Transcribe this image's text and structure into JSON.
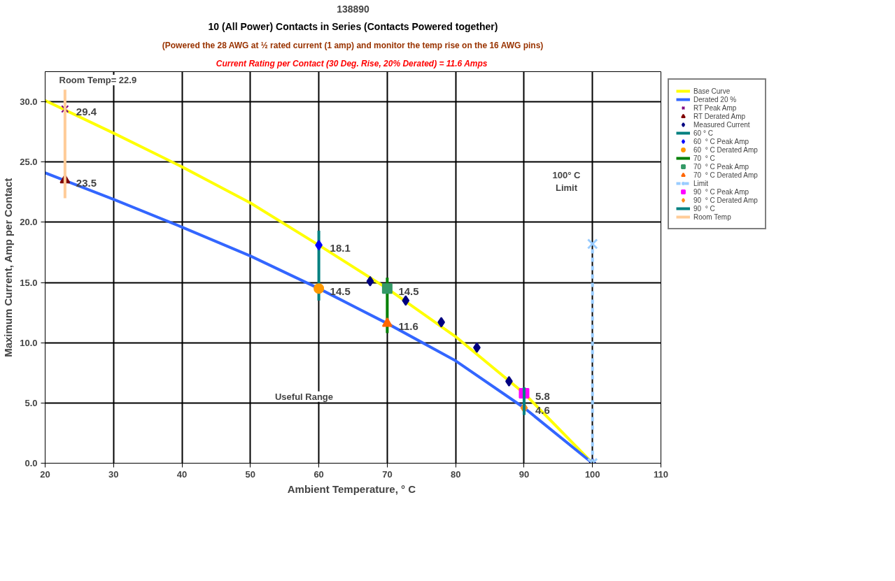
{
  "chart_data": {
    "type": "line",
    "title": "138890",
    "subtitle": [
      "10 (All Power) Contacts in Series (Contacts Powered together)",
      "(Powered the 28 AWG at ½ rated current (1 amp) and monitor the temp rise on the 16 AWG pins)",
      "Current Rating per Contact (30 Deg. Rise, 20% Derated)  = 11.6 Amps"
    ],
    "xlabel": "Ambient Temperature,  ° C",
    "ylabel": "Maximum Current, Amp per Contact",
    "xlim": [
      20,
      110
    ],
    "ylim": [
      0,
      32.5
    ],
    "xticks": [
      20,
      30,
      40,
      50,
      60,
      70,
      80,
      90,
      100,
      110
    ],
    "yticks": [
      {
        "value": 0,
        "label": "0.0"
      },
      {
        "value": 5,
        "label": "5.0"
      },
      {
        "value": 10,
        "label": "10.0"
      },
      {
        "value": 15,
        "label": "15.0"
      },
      {
        "value": 20,
        "label": "20.0"
      },
      {
        "value": 25,
        "label": "25.0"
      },
      {
        "value": 30,
        "label": "30.0"
      }
    ],
    "grid": true,
    "legend": "right",
    "annotations": [
      "Room Temp= 22.9",
      "100° C\nLimit",
      "Useful Range"
    ],
    "series": [
      {
        "name": "Base Curve",
        "color": "#ffff00",
        "marker": "none",
        "x": [
          20,
          30,
          40,
          50,
          60,
          70,
          80,
          90,
          100
        ],
        "values": [
          30.1,
          27.4,
          24.6,
          21.6,
          18.1,
          14.5,
          10.5,
          5.8,
          0
        ]
      },
      {
        "name": "Derated 20 %",
        "color": "#3366ff",
        "marker": "none",
        "x": [
          20,
          30,
          40,
          50,
          60,
          70,
          80,
          90,
          100
        ],
        "values": [
          24.1,
          21.9,
          19.6,
          17.2,
          14.5,
          11.6,
          8.5,
          4.6,
          0
        ]
      },
      {
        "name": "RT Peak Amp",
        "type": "scatter",
        "color": "#800080",
        "marker": "cross",
        "x": [
          22.9
        ],
        "values": [
          29.4
        ],
        "value_labels": [
          "29.4"
        ]
      },
      {
        "name": "RT Derated Amp",
        "type": "scatter",
        "color": "#800000",
        "marker": "triangle",
        "x": [
          22.9
        ],
        "values": [
          23.5
        ],
        "value_labels": [
          "23.5"
        ]
      },
      {
        "name": "Measured Current",
        "type": "scatter",
        "color": "#000080",
        "marker": "diamond",
        "x": [
          67.5,
          72.7,
          77.9,
          83.1,
          87.8,
          100
        ],
        "values": [
          15.1,
          13.5,
          11.7,
          9.6,
          6.8,
          0
        ]
      },
      {
        "name": "60 ° C",
        "type": "line",
        "color": "#008080",
        "marker": "none",
        "x": [
          60,
          60
        ],
        "values": [
          13.5,
          19.3
        ]
      },
      {
        "name": "60  ° C Peak Amp",
        "type": "scatter",
        "color": "#0000ff",
        "marker": "diamond",
        "x": [
          60
        ],
        "values": [
          18.1
        ],
        "value_labels": [
          "18.1"
        ]
      },
      {
        "name": "60  ° C Derated Amp",
        "type": "scatter",
        "color": "#ff9900",
        "marker": "circle",
        "x": [
          60
        ],
        "values": [
          14.5
        ],
        "value_labels": [
          "14.5"
        ]
      },
      {
        "name": "70  ° C",
        "type": "line",
        "color": "#008000",
        "marker": "none",
        "x": [
          70,
          70
        ],
        "values": [
          10.8,
          15.4
        ]
      },
      {
        "name": "70  ° C Peak Amp",
        "type": "scatter",
        "color": "#339966",
        "marker": "square",
        "x": [
          70
        ],
        "values": [
          14.5
        ],
        "value_labels": [
          "14.5"
        ]
      },
      {
        "name": "70  ° C Derated Amp",
        "type": "scatter",
        "color": "#ff6600",
        "marker": "triangle",
        "x": [
          70
        ],
        "values": [
          11.6
        ],
        "value_labels": [
          "11.6"
        ]
      },
      {
        "name": "Limit",
        "type": "line",
        "color": "#99ccff",
        "marker": "cross",
        "line_style": "dashed",
        "x": [
          100,
          100
        ],
        "values": [
          0,
          18.2
        ]
      },
      {
        "name": "90  ° C Peak Amp",
        "type": "scatter",
        "color": "#ff00ff",
        "marker": "square",
        "x": [
          90
        ],
        "values": [
          5.8
        ],
        "value_labels": [
          "5.8"
        ]
      },
      {
        "name": "90  ° C Derated Amp",
        "type": "scatter",
        "color": "#ff8c1a",
        "marker": "diamond",
        "x": [
          90
        ],
        "values": [
          4.6
        ],
        "value_labels": [
          "4.6"
        ]
      },
      {
        "name": "90  ° C",
        "type": "line",
        "color": "#008080",
        "marker": "none",
        "x": [
          90,
          90
        ],
        "values": [
          4.0,
          6.3
        ]
      },
      {
        "name": "Room Temp",
        "type": "line",
        "color": "#ffcc99",
        "marker": "none",
        "x": [
          22.9,
          22.9
        ],
        "values": [
          22.0,
          31.0
        ]
      }
    ]
  }
}
